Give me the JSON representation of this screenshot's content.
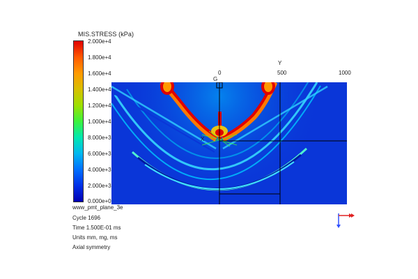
{
  "legend": {
    "title": "MIS.STRESS (kPa)",
    "ticks": [
      "2.000e+4",
      "1.800e+4",
      "1.600e+4",
      "1.400e+4",
      "1.200e+4",
      "1.000e+4",
      "8.000e+3",
      "6.000e+3",
      "4.000e+3",
      "2.000e+3",
      "0.000e+0"
    ]
  },
  "axis": {
    "label_0": "0",
    "label_500": "500",
    "label_1000": "1000",
    "y_marker": "Y",
    "x_marker": "X",
    "origin_marker": "G"
  },
  "info": {
    "line1": "www_pmt_plane_3e",
    "line2": "Cycle 1696",
    "line3": "Time 1.500E-01 ms",
    "line4": "Units mm, mg, ms",
    "line5": "Axial symmetry"
  },
  "colors": {
    "background_field": "#0a36d8",
    "wave_outer": "#00d0ff",
    "hot": "#e00000",
    "frame_line": "#000000"
  }
}
